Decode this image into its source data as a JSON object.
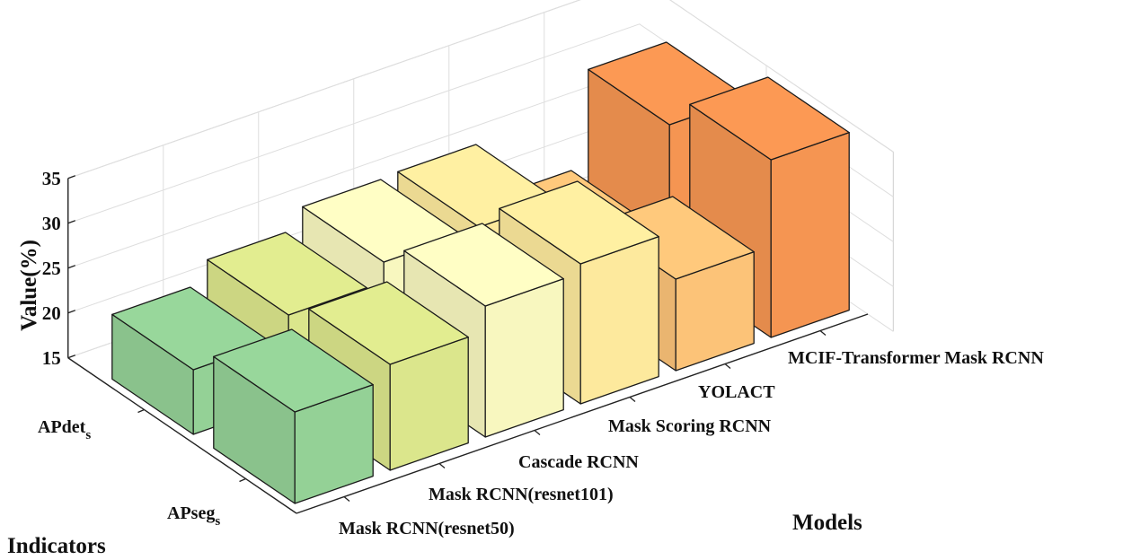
{
  "chart_data": {
    "type": "bar3d",
    "title": "",
    "zlabel": "Value(%)",
    "xlabel": "Models",
    "ylabel": "Indicators",
    "zlim": [
      15,
      35
    ],
    "zticks": [
      "15",
      "20",
      "25",
      "30",
      "35"
    ],
    "models": [
      "Mask RCNN(resnet50)",
      "Mask RCNN(resnet101)",
      "Cascade RCNN",
      "Mask Scoring RCNN",
      "YOLACT",
      "MCIF-Transformer Mask RCNN"
    ],
    "indicators": [
      {
        "base": "APdet",
        "sub": "s"
      },
      {
        "base": "APseg",
        "sub": "s"
      }
    ],
    "series": [
      {
        "name": "APdet_s",
        "values": [
          25.2,
          26.8,
          29.6,
          30.6,
          25.2,
          34.8
        ]
      },
      {
        "name": "APseg_s",
        "values": [
          22.2,
          24.6,
          26.8,
          27.0,
          20.4,
          31.0
        ]
      }
    ],
    "colors": [
      "#94d196",
      "#dbe68c",
      "#f8f7bf",
      "#fde99d",
      "#fcc378",
      "#f59552"
    ]
  }
}
